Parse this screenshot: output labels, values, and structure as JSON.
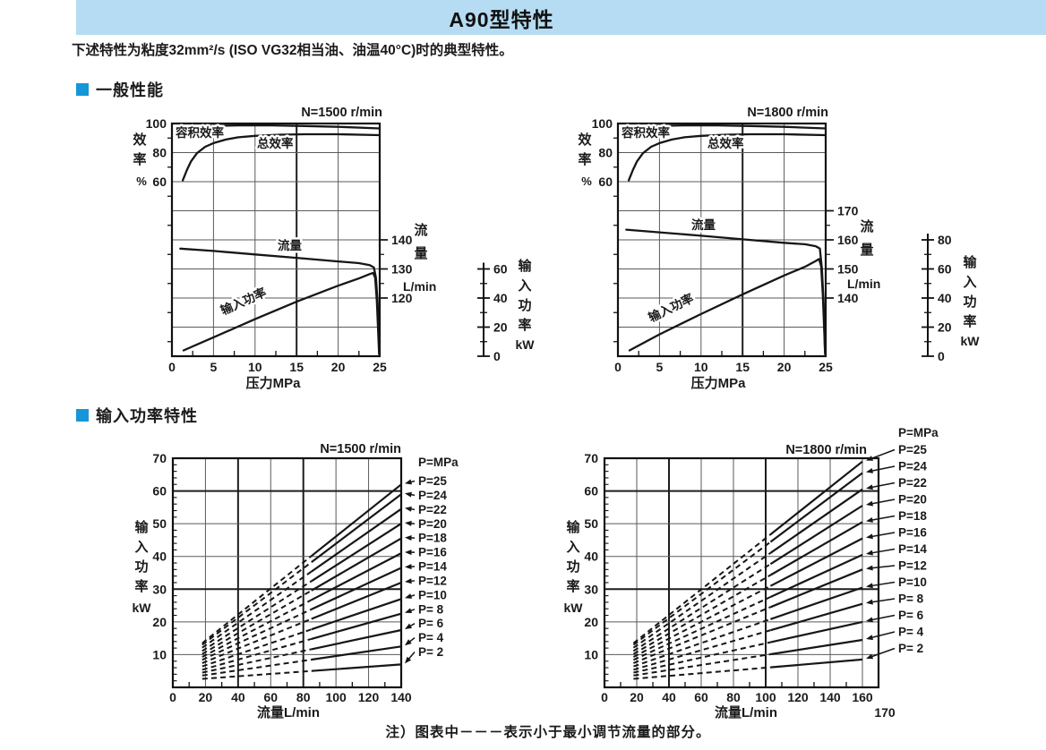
{
  "page": {
    "banner_title": "A90型特性",
    "subtitle": "下述特性为粘度32mm²/s (ISO VG32相当油、油温40°C)时的典型特性。",
    "sections": [
      {
        "label": "一般性能"
      },
      {
        "label": "输入功率特性"
      }
    ],
    "note": "注）图表中－－－表示小于最小调节流量的部分。",
    "colors": {
      "banner_bg": "#b5dcf2",
      "bullet": "#1596d6",
      "ink": "#1a1a1a",
      "curve": "#161616",
      "grid": "#5a5a5a",
      "grid_major": "#1d1d1d",
      "border": "#111111"
    }
  },
  "chart_data": [
    {
      "id": "general-1500",
      "type": "line",
      "title": "N=1500 r/min",
      "rows": 8,
      "x_axis": {
        "label": "压力MPa",
        "min": 0,
        "max": 25,
        "ticks": [
          0,
          5,
          10,
          15,
          20,
          25
        ],
        "minor_step": 2.5,
        "major_line": 15
      },
      "eff_axis": {
        "name": "效率",
        "unit": "%",
        "ticks": [
          100,
          80,
          60
        ],
        "pct_per_row": 20
      },
      "flow_axis": {
        "name": "流量",
        "unit": "L/min",
        "ticks": [
          140,
          130,
          120
        ],
        "value_at_row": {
          "value": 140,
          "row": 4
        },
        "lmin_per_row": 10
      },
      "power_axis": {
        "name": "输入功率",
        "unit": "kW",
        "ticks": [
          60,
          40,
          20,
          0
        ],
        "kw_per_row": 20
      },
      "series": [
        {
          "key": "volumetric_efficiency",
          "label": "容积效率",
          "axis": "eff",
          "points": [
            [
              1.3,
              96
            ],
            [
              2,
              97.2
            ],
            [
              3,
              97.9
            ],
            [
              5,
              98.4
            ],
            [
              8,
              98.7
            ],
            [
              12,
              98.7
            ],
            [
              16,
              98.3
            ],
            [
              20,
              97.7
            ],
            [
              25,
              96.6
            ]
          ]
        },
        {
          "key": "total_efficiency",
          "label": "总效率",
          "axis": "eff",
          "points": [
            [
              1.3,
              61
            ],
            [
              1.8,
              68
            ],
            [
              2.3,
              74
            ],
            [
              3,
              79.5
            ],
            [
              4,
              84
            ],
            [
              5,
              86.5
            ],
            [
              6.5,
              89
            ],
            [
              8,
              90.5
            ],
            [
              10,
              91.5
            ],
            [
              13,
              92.3
            ],
            [
              16,
              92.6
            ],
            [
              20,
              92.6
            ],
            [
              25,
              92
            ]
          ]
        },
        {
          "key": "flow",
          "label": "流量",
          "axis": "flow",
          "points": [
            [
              1,
              137
            ],
            [
              5,
              136.2
            ],
            [
              10,
              135
            ],
            [
              15,
              133.8
            ],
            [
              20,
              132.6
            ],
            [
              22.5,
              132
            ],
            [
              23.8,
              131.3
            ],
            [
              24.3,
              130.5
            ],
            [
              24.55,
              127
            ],
            [
              24.75,
              118
            ],
            [
              24.9,
              104
            ]
          ]
        },
        {
          "key": "input_power",
          "label": "输入功率",
          "axis": "power",
          "points": [
            [
              1.4,
              4
            ],
            [
              5,
              13
            ],
            [
              10,
              25.5
            ],
            [
              15,
              37.5
            ],
            [
              20,
              48.5
            ],
            [
              22.5,
              53.5
            ],
            [
              23.8,
              56.5
            ],
            [
              24.2,
              57.3
            ],
            [
              24.45,
              54
            ],
            [
              24.65,
              38
            ],
            [
              24.85,
              12
            ],
            [
              24.92,
              1.5
            ]
          ]
        }
      ]
    },
    {
      "id": "general-1800",
      "type": "line",
      "title": "N=1800 r/min",
      "rows": 8,
      "x_axis": {
        "label": "压力MPa",
        "min": 0,
        "max": 25,
        "ticks": [
          0,
          5,
          10,
          15,
          20,
          25
        ],
        "minor_step": 2.5,
        "major_line": 15
      },
      "eff_axis": {
        "name": "效率",
        "unit": "%",
        "ticks": [
          100,
          80,
          60
        ],
        "pct_per_row": 20
      },
      "flow_axis": {
        "name": "流量",
        "unit": "L/min",
        "ticks": [
          170,
          160,
          150,
          140
        ],
        "value_at_row": {
          "value": 170,
          "row": 3
        },
        "lmin_per_row": 10
      },
      "power_axis": {
        "name": "输入功率",
        "unit": "kW",
        "ticks": [
          80,
          60,
          40,
          20,
          0
        ],
        "kw_per_row": 20
      },
      "series": [
        {
          "key": "volumetric_efficiency",
          "label": "容积效率",
          "axis": "eff",
          "points": [
            [
              1.3,
              96
            ],
            [
              2,
              97.2
            ],
            [
              3,
              97.9
            ],
            [
              5,
              98.4
            ],
            [
              8,
              98.7
            ],
            [
              12,
              98.7
            ],
            [
              16,
              98.3
            ],
            [
              20,
              97.7
            ],
            [
              25,
              96.6
            ]
          ]
        },
        {
          "key": "total_efficiency",
          "label": "总效率",
          "axis": "eff",
          "points": [
            [
              1.3,
              61
            ],
            [
              1.8,
              68
            ],
            [
              2.3,
              74
            ],
            [
              3,
              79.5
            ],
            [
              4,
              84
            ],
            [
              5,
              86.5
            ],
            [
              6.5,
              89
            ],
            [
              8,
              90.5
            ],
            [
              10,
              91.5
            ],
            [
              13,
              92.3
            ],
            [
              16,
              92.6
            ],
            [
              20,
              92.6
            ],
            [
              25,
              92
            ]
          ]
        },
        {
          "key": "flow",
          "label": "流量",
          "axis": "flow",
          "points": [
            [
              1,
              163.5
            ],
            [
              5,
              162.6
            ],
            [
              10,
              161.4
            ],
            [
              15,
              160.2
            ],
            [
              20,
              159
            ],
            [
              22.5,
              158.5
            ],
            [
              23.8,
              157.8
            ],
            [
              24.3,
              157
            ],
            [
              24.55,
              150
            ],
            [
              24.75,
              138
            ],
            [
              24.9,
              123
            ]
          ]
        },
        {
          "key": "input_power",
          "label": "输入功率",
          "axis": "power",
          "points": [
            [
              1.4,
              4
            ],
            [
              5,
              15
            ],
            [
              10,
              29
            ],
            [
              15,
              42.5
            ],
            [
              20,
              55.5
            ],
            [
              22.5,
              61.5
            ],
            [
              23.8,
              65.5
            ],
            [
              24.2,
              66.8
            ],
            [
              24.45,
              62
            ],
            [
              24.65,
              42
            ],
            [
              24.85,
              14
            ],
            [
              24.92,
              1.5
            ]
          ]
        }
      ]
    },
    {
      "id": "power-1500",
      "type": "line",
      "title": "N=1500 r/min",
      "x_axis": {
        "label": "流量L/min",
        "max_grid": 140,
        "ticks": [
          0,
          20,
          40,
          60,
          80,
          100,
          120,
          140
        ],
        "minor_step": 10,
        "major_lines": [
          40,
          80
        ]
      },
      "y_axis": {
        "name": "输入功率",
        "unit": "kW",
        "max": 70,
        "ticks": [
          70,
          60,
          50,
          40,
          30,
          20,
          10
        ],
        "minor_step": 2,
        "major_lines": [
          30,
          60
        ]
      },
      "legend": {
        "header": "P=MPa",
        "entries": [
          "P=25",
          "P=24",
          "P=22",
          "P=20",
          "P=18",
          "P=16",
          "P=14",
          "P=12",
          "P=10",
          "P= 8",
          "P= 6",
          "P= 4",
          "P= 2"
        ]
      },
      "lines": {
        "x_start": 18,
        "x_solid_from": 85,
        "x_end": 140,
        "pressures": [
          25,
          24,
          22,
          20,
          18,
          16,
          14,
          12,
          10,
          8,
          6,
          4,
          2
        ],
        "kw_at_start": [
          13.5,
          13.0,
          12.1,
          11.1,
          10.2,
          9.3,
          8.4,
          7.4,
          6.4,
          5.4,
          4.5,
          3.6,
          2.6
        ],
        "kw_at_end": [
          62,
          59,
          54.5,
          50,
          45.5,
          41,
          36.5,
          32,
          27,
          22.5,
          17.5,
          12.5,
          7
        ]
      }
    },
    {
      "id": "power-1800",
      "type": "line",
      "title": "N=1800 r/min",
      "x_axis": {
        "label": "流量L/min",
        "max_grid": 170,
        "ticks": [
          0,
          20,
          40,
          60,
          80,
          100,
          120,
          140,
          160
        ],
        "minor_step": 10,
        "major_lines": [
          40,
          100
        ],
        "extra_tick": {
          "value": 170,
          "label": "170"
        }
      },
      "y_axis": {
        "name": "输入功率",
        "unit": "kW",
        "max": 70,
        "ticks": [
          70,
          60,
          50,
          40,
          30,
          20,
          10
        ],
        "minor_step": 2,
        "major_lines": [
          30,
          60
        ]
      },
      "legend": {
        "header": "P=MPa",
        "entries": [
          "P=25",
          "P=24",
          "P=22",
          "P=20",
          "P=18",
          "P=16",
          "P=14",
          "P=12",
          "P=10",
          "P= 8",
          "P= 6",
          "P= 4",
          "P= 2"
        ]
      },
      "lines": {
        "x_start": 18,
        "x_solid_from": 103,
        "x_end": 160,
        "pressures": [
          25,
          24,
          22,
          20,
          18,
          16,
          14,
          12,
          10,
          8,
          6,
          4,
          2
        ],
        "kw_at_start": [
          13.5,
          13.0,
          12.1,
          11.1,
          10.2,
          9.3,
          8.4,
          7.4,
          6.4,
          5.4,
          4.5,
          3.6,
          2.6
        ],
        "kw_at_end": [
          69,
          65.5,
          60.5,
          55.5,
          50.5,
          45.5,
          40.5,
          36,
          30.5,
          25.5,
          20,
          14.5,
          8.5
        ]
      }
    }
  ]
}
